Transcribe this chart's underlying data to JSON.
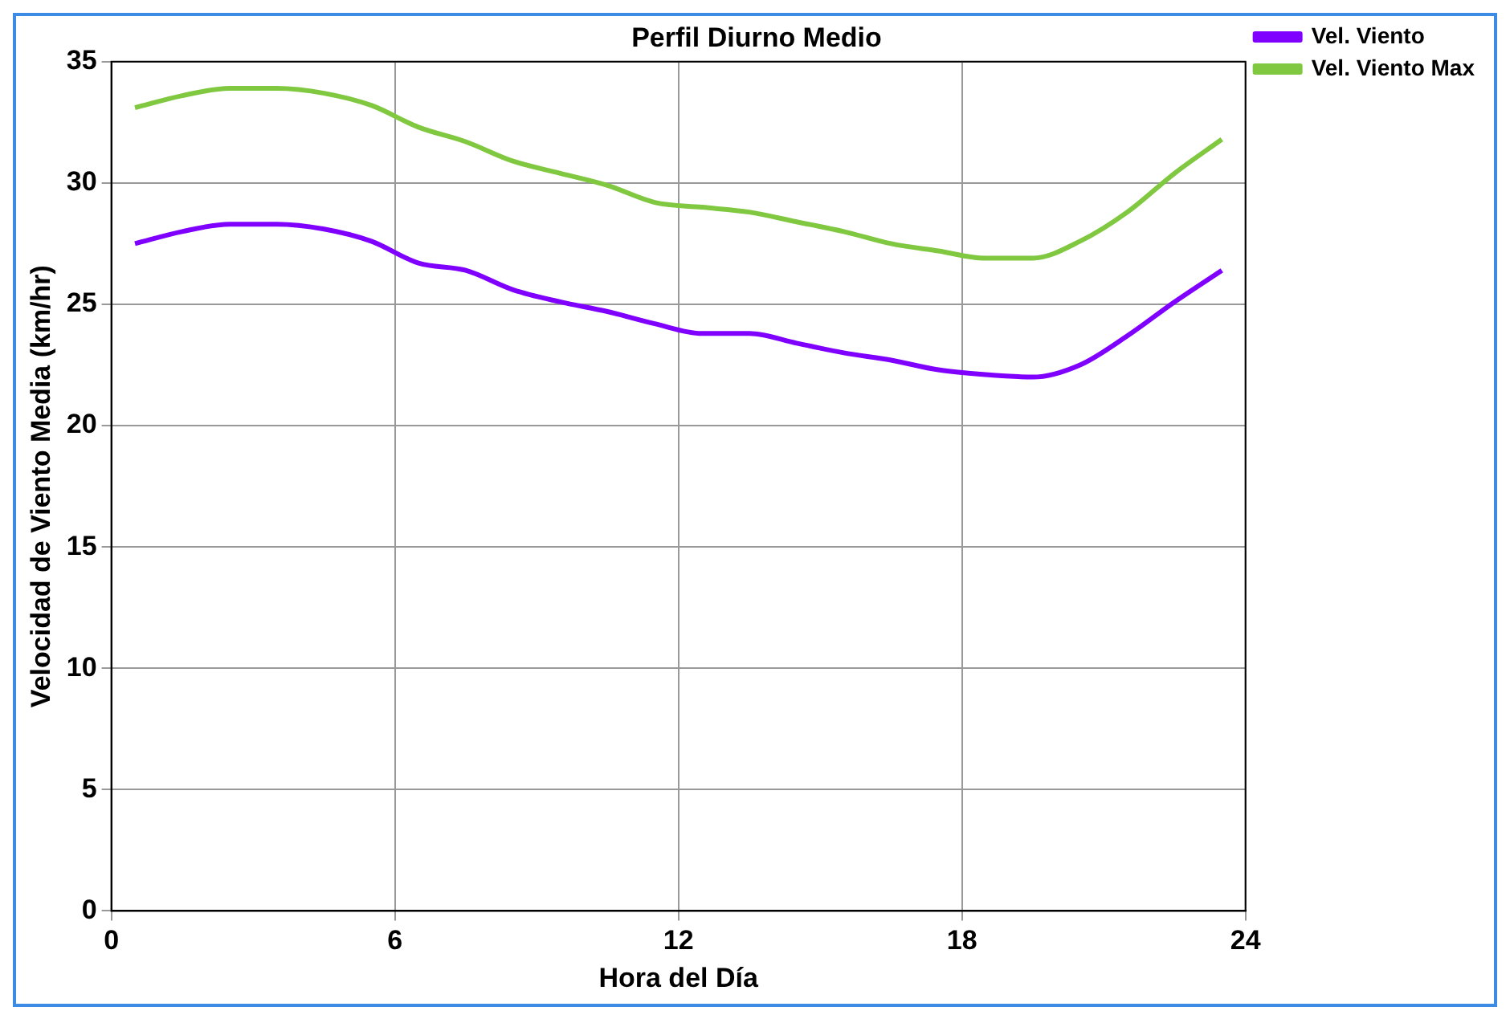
{
  "chart_data": {
    "type": "line",
    "title": "Perfil Diurno Medio",
    "xlabel": "Hora del Día",
    "ylabel": "Velocidad de Viento Media (km/hr)",
    "x": [
      0.5,
      1.5,
      2.5,
      3.5,
      4.5,
      5.5,
      6.5,
      7.5,
      8.5,
      9.5,
      10.5,
      11.5,
      12.5,
      13.5,
      14.5,
      15.5,
      16.5,
      17.5,
      18.5,
      19.5,
      20.5,
      21.5,
      22.5,
      23.5
    ],
    "series": [
      {
        "name": "Vel. Viento",
        "color": "#8000ff",
        "values": [
          27.5,
          28.0,
          28.3,
          28.3,
          28.1,
          27.6,
          26.7,
          26.4,
          25.6,
          25.1,
          24.7,
          24.2,
          23.8,
          23.8,
          23.4,
          23.0,
          22.7,
          22.3,
          22.1,
          22.0,
          22.5,
          23.7,
          25.1,
          26.4
        ]
      },
      {
        "name": "Vel. Viento Max",
        "color": "#80c840",
        "values": [
          33.1,
          33.6,
          33.9,
          33.9,
          33.7,
          33.2,
          32.3,
          31.7,
          30.9,
          30.4,
          29.9,
          29.2,
          29.0,
          28.8,
          28.4,
          28.0,
          27.5,
          27.2,
          26.9,
          26.9,
          27.6,
          28.8,
          30.4,
          31.8
        ]
      }
    ],
    "xlim": [
      0,
      24
    ],
    "xticks": [
      0,
      6,
      12,
      18,
      24
    ],
    "ylim": [
      0,
      35
    ],
    "yticks": [
      0,
      5,
      10,
      15,
      20,
      25,
      30,
      35
    ],
    "grid": true,
    "legend": "top right",
    "marker": "none",
    "line_style": "solid"
  }
}
